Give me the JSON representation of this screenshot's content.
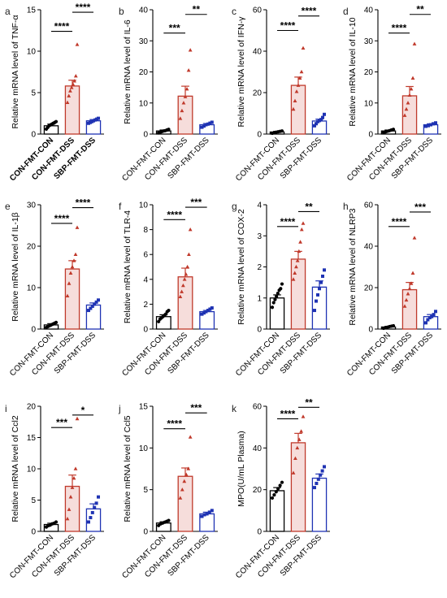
{
  "colors": {
    "con": "#000000",
    "dss": "#c0392b",
    "sbp": "#1f33b3",
    "dss_fill": "#f6dddb"
  },
  "chart_data": [
    {
      "type": "bar",
      "letter": "a",
      "ylabel": "Relative mRNA level of TNF-α",
      "categories": [
        "CON-FMT-CON",
        "CON-FMT-DSS",
        "SBP-FMT-DSS"
      ],
      "bold_tick_labels": true,
      "values": [
        1.0,
        5.8,
        1.6
      ],
      "errors": [
        0.2,
        0.7,
        0.15
      ],
      "ylim": [
        0,
        15
      ],
      "yticks": [
        0,
        5,
        10,
        15
      ],
      "points": [
        [
          0.6,
          0.8,
          1.0,
          1.1,
          1.2,
          1.3,
          1.4,
          1.5
        ],
        [
          3.8,
          4.6,
          5.2,
          5.6,
          6.0,
          6.4,
          7.0,
          10.8
        ],
        [
          1.3,
          1.4,
          1.5,
          1.6,
          1.7,
          1.8,
          1.9
        ]
      ],
      "brackets": [
        {
          "from": 0,
          "to": 1,
          "label": "****",
          "y": 12.4
        },
        {
          "from": 1,
          "to": 2,
          "label": "****",
          "y": 14.7
        }
      ]
    },
    {
      "type": "bar",
      "letter": "b",
      "ylabel": "Relative mRNA level of IL-6",
      "categories": [
        "CON-FMT-CON",
        "CON-FMT-DSS",
        "SBP-FMT-DSS"
      ],
      "values": [
        1.0,
        12.2,
        3.0
      ],
      "errors": [
        0.3,
        3.2,
        0.4
      ],
      "ylim": [
        0,
        40
      ],
      "yticks": [
        0,
        10,
        20,
        30,
        40
      ],
      "points": [
        [
          0.4,
          0.6,
          0.8,
          1.0,
          1.1,
          1.3,
          1.5
        ],
        [
          5.0,
          7.5,
          10.0,
          12.0,
          14.5,
          20.5,
          27.0
        ],
        [
          2.2,
          2.6,
          3.0,
          3.2,
          3.5,
          3.8
        ]
      ],
      "brackets": [
        {
          "from": 0,
          "to": 1,
          "label": "***",
          "y": 32.5
        },
        {
          "from": 1,
          "to": 2,
          "label": "**",
          "y": 38.5
        }
      ]
    },
    {
      "type": "bar",
      "letter": "c",
      "ylabel": "Relative mRNA level of IFN-γ",
      "categories": [
        "CON-FMT-CON",
        "CON-FMT-DSS",
        "SBP-FMT-DSS"
      ],
      "values": [
        1.0,
        23.5,
        6.3
      ],
      "errors": [
        0.3,
        4.0,
        0.9
      ],
      "ylim": [
        0,
        60
      ],
      "yticks": [
        0,
        20,
        40,
        60
      ],
      "points": [
        [
          0.4,
          0.7,
          0.9,
          1.1,
          1.3,
          1.5
        ],
        [
          12.0,
          16.0,
          20.5,
          23.5,
          27.0,
          30.0,
          41.5
        ],
        [
          4.0,
          5.0,
          6.0,
          6.5,
          7.0,
          8.0,
          9.5
        ]
      ],
      "brackets": [
        {
          "from": 0,
          "to": 1,
          "label": "****",
          "y": 50.0
        },
        {
          "from": 1,
          "to": 2,
          "label": "****",
          "y": 57.0
        }
      ]
    },
    {
      "type": "bar",
      "letter": "d",
      "ylabel": "Relative mRNA level of IL-10",
      "categories": [
        "CON-FMT-CON",
        "CON-FMT-DSS",
        "SBP-FMT-DSS"
      ],
      "values": [
        1.0,
        12.3,
        3.0
      ],
      "errors": [
        0.3,
        3.0,
        0.3
      ],
      "ylim": [
        0,
        40
      ],
      "yticks": [
        0,
        10,
        20,
        30,
        40
      ],
      "points": [
        [
          0.5,
          0.7,
          0.9,
          1.1,
          1.3,
          1.5
        ],
        [
          6.0,
          8.0,
          10.0,
          12.5,
          14.5,
          18.0,
          29.0
        ],
        [
          2.5,
          2.7,
          3.0,
          3.3,
          3.6
        ]
      ],
      "brackets": [
        {
          "from": 0,
          "to": 1,
          "label": "****",
          "y": 32.5
        },
        {
          "from": 1,
          "to": 2,
          "label": "**",
          "y": 38.5
        }
      ]
    },
    {
      "type": "bar",
      "letter": "e",
      "ylabel": "Relative mRNA level of IL-1β",
      "categories": [
        "CON-FMT-CON",
        "CON-FMT-DSS",
        "SBP-FMT-DSS"
      ],
      "values": [
        1.0,
        14.5,
        5.8
      ],
      "errors": [
        0.3,
        2.0,
        0.5
      ],
      "ylim": [
        0,
        30
      ],
      "yticks": [
        0,
        10,
        20,
        30
      ],
      "points": [
        [
          0.4,
          0.6,
          0.8,
          1.0,
          1.2,
          1.4,
          1.6
        ],
        [
          8.0,
          11.0,
          13.5,
          15.0,
          16.5,
          18.0,
          24.5
        ],
        [
          4.5,
          5.0,
          5.5,
          6.0,
          6.5,
          7.0
        ]
      ],
      "brackets": [
        {
          "from": 0,
          "to": 1,
          "label": "****",
          "y": 25.5
        },
        {
          "from": 1,
          "to": 2,
          "label": "****",
          "y": 29.3
        }
      ]
    },
    {
      "type": "bar",
      "letter": "f",
      "ylabel": "Relative mRNA level of TLR-4",
      "categories": [
        "CON-FMT-CON",
        "CON-FMT-DSS",
        "SBP-FMT-DSS"
      ],
      "values": [
        1.0,
        4.2,
        1.4
      ],
      "errors": [
        0.15,
        0.7,
        0.1
      ],
      "ylim": [
        0,
        10
      ],
      "yticks": [
        0,
        2,
        4,
        6,
        8,
        10
      ],
      "points": [
        [
          0.6,
          0.8,
          0.9,
          1.0,
          1.1,
          1.2,
          1.4,
          1.5
        ],
        [
          2.6,
          3.0,
          3.5,
          4.0,
          4.4,
          5.0,
          6.0,
          8.0
        ],
        [
          1.2,
          1.3,
          1.4,
          1.5,
          1.6,
          1.7
        ]
      ],
      "brackets": [
        {
          "from": 0,
          "to": 1,
          "label": "****",
          "y": 8.8
        },
        {
          "from": 1,
          "to": 2,
          "label": "***",
          "y": 9.8
        }
      ]
    },
    {
      "type": "bar",
      "letter": "g",
      "ylabel": "Relative mRNA level of COX-2",
      "categories": [
        "CON-FMT-CON",
        "CON-FMT-DSS",
        "SBP-FMT-DSS"
      ],
      "values": [
        1.0,
        2.25,
        1.35
      ],
      "errors": [
        0.1,
        0.25,
        0.2
      ],
      "ylim": [
        0,
        4
      ],
      "yticks": [
        0,
        1,
        2,
        3,
        4
      ],
      "points": [
        [
          0.7,
          0.85,
          0.95,
          1.05,
          1.15,
          1.25,
          1.3,
          1.45
        ],
        [
          1.6,
          1.8,
          2.0,
          2.2,
          2.5,
          2.8,
          3.2,
          3.4
        ],
        [
          0.6,
          0.9,
          1.1,
          1.3,
          1.5,
          1.7,
          1.9
        ]
      ],
      "brackets": [
        {
          "from": 0,
          "to": 1,
          "label": "****",
          "y": 3.3
        },
        {
          "from": 1,
          "to": 2,
          "label": "**",
          "y": 3.78
        }
      ]
    },
    {
      "type": "bar",
      "letter": "h",
      "ylabel": "Relative mRNA level of NLRP3",
      "categories": [
        "CON-FMT-CON",
        "CON-FMT-DSS",
        "SBP-FMT-DSS"
      ],
      "values": [
        1.0,
        19.0,
        6.0
      ],
      "errors": [
        0.3,
        3.5,
        1.0
      ],
      "ylim": [
        0,
        60
      ],
      "yticks": [
        0,
        20,
        40,
        60
      ],
      "points": [
        [
          0.4,
          0.7,
          0.9,
          1.2,
          1.4,
          1.6
        ],
        [
          11.0,
          14.0,
          17.0,
          19.5,
          22.0,
          27.0,
          44.0
        ],
        [
          3.0,
          4.5,
          5.5,
          6.0,
          7.0,
          8.5
        ]
      ],
      "brackets": [
        {
          "from": 0,
          "to": 1,
          "label": "****",
          "y": 49.5
        },
        {
          "from": 1,
          "to": 2,
          "label": "***",
          "y": 56.5
        }
      ]
    },
    {
      "type": "bar",
      "letter": "i",
      "ylabel": "Relative mRNA level of Ccl2",
      "categories": [
        "CON-FMT-CON",
        "CON-FMT-DSS",
        "SBP-FMT-DSS"
      ],
      "values": [
        1.1,
        7.2,
        3.6
      ],
      "errors": [
        0.2,
        1.8,
        0.8
      ],
      "ylim": [
        0,
        20
      ],
      "yticks": [
        0,
        5,
        10,
        15,
        20
      ],
      "points": [
        [
          0.7,
          0.9,
          1.0,
          1.2,
          1.3,
          1.5
        ],
        [
          2.0,
          3.5,
          5.5,
          7.0,
          8.5,
          10.0,
          18.0
        ],
        [
          1.5,
          2.2,
          3.0,
          3.8,
          4.5,
          5.5
        ]
      ],
      "brackets": [
        {
          "from": 0,
          "to": 1,
          "label": "***",
          "y": 16.6
        },
        {
          "from": 1,
          "to": 2,
          "label": "*",
          "y": 18.6
        }
      ]
    },
    {
      "type": "bar",
      "letter": "j",
      "ylabel": "Relative mRNA level of Ccl5",
      "categories": [
        "CON-FMT-CON",
        "CON-FMT-DSS",
        "SBP-FMT-DSS"
      ],
      "values": [
        1.0,
        6.6,
        2.1
      ],
      "errors": [
        0.15,
        1.0,
        0.2
      ],
      "ylim": [
        0,
        15
      ],
      "yticks": [
        0,
        5,
        10,
        15
      ],
      "points": [
        [
          0.7,
          0.9,
          1.0,
          1.1,
          1.2,
          1.3
        ],
        [
          4.0,
          5.0,
          6.0,
          6.8,
          7.5,
          11.3
        ],
        [
          1.8,
          2.0,
          2.1,
          2.3,
          2.5
        ]
      ],
      "brackets": [
        {
          "from": 0,
          "to": 1,
          "label": "****",
          "y": 12.3
        },
        {
          "from": 1,
          "to": 2,
          "label": "***",
          "y": 14.2
        }
      ]
    },
    {
      "type": "bar",
      "letter": "k",
      "ylabel": "MPO(U/mL Plasma)",
      "categories": [
        "CON-FMT-CON",
        "CON-FMT-DSS",
        "SBP-FMT-DSS"
      ],
      "values": [
        19.5,
        42.5,
        25.5
      ],
      "errors": [
        1.5,
        4.5,
        2.0
      ],
      "ylim": [
        0,
        60
      ],
      "yticks": [
        0,
        20,
        40,
        60
      ],
      "points": [
        [
          16.0,
          17.5,
          19.0,
          20.5,
          22.0,
          23.5
        ],
        [
          28.0,
          35.0,
          40.0,
          44.0,
          48.0,
          55.0
        ],
        [
          21.0,
          23.0,
          25.0,
          27.0,
          29.0,
          31.0
        ]
      ],
      "brackets": [
        {
          "from": 0,
          "to": 1,
          "label": "****",
          "y": 54.0
        },
        {
          "from": 1,
          "to": 2,
          "label": "**",
          "y": 59.5
        }
      ]
    }
  ]
}
